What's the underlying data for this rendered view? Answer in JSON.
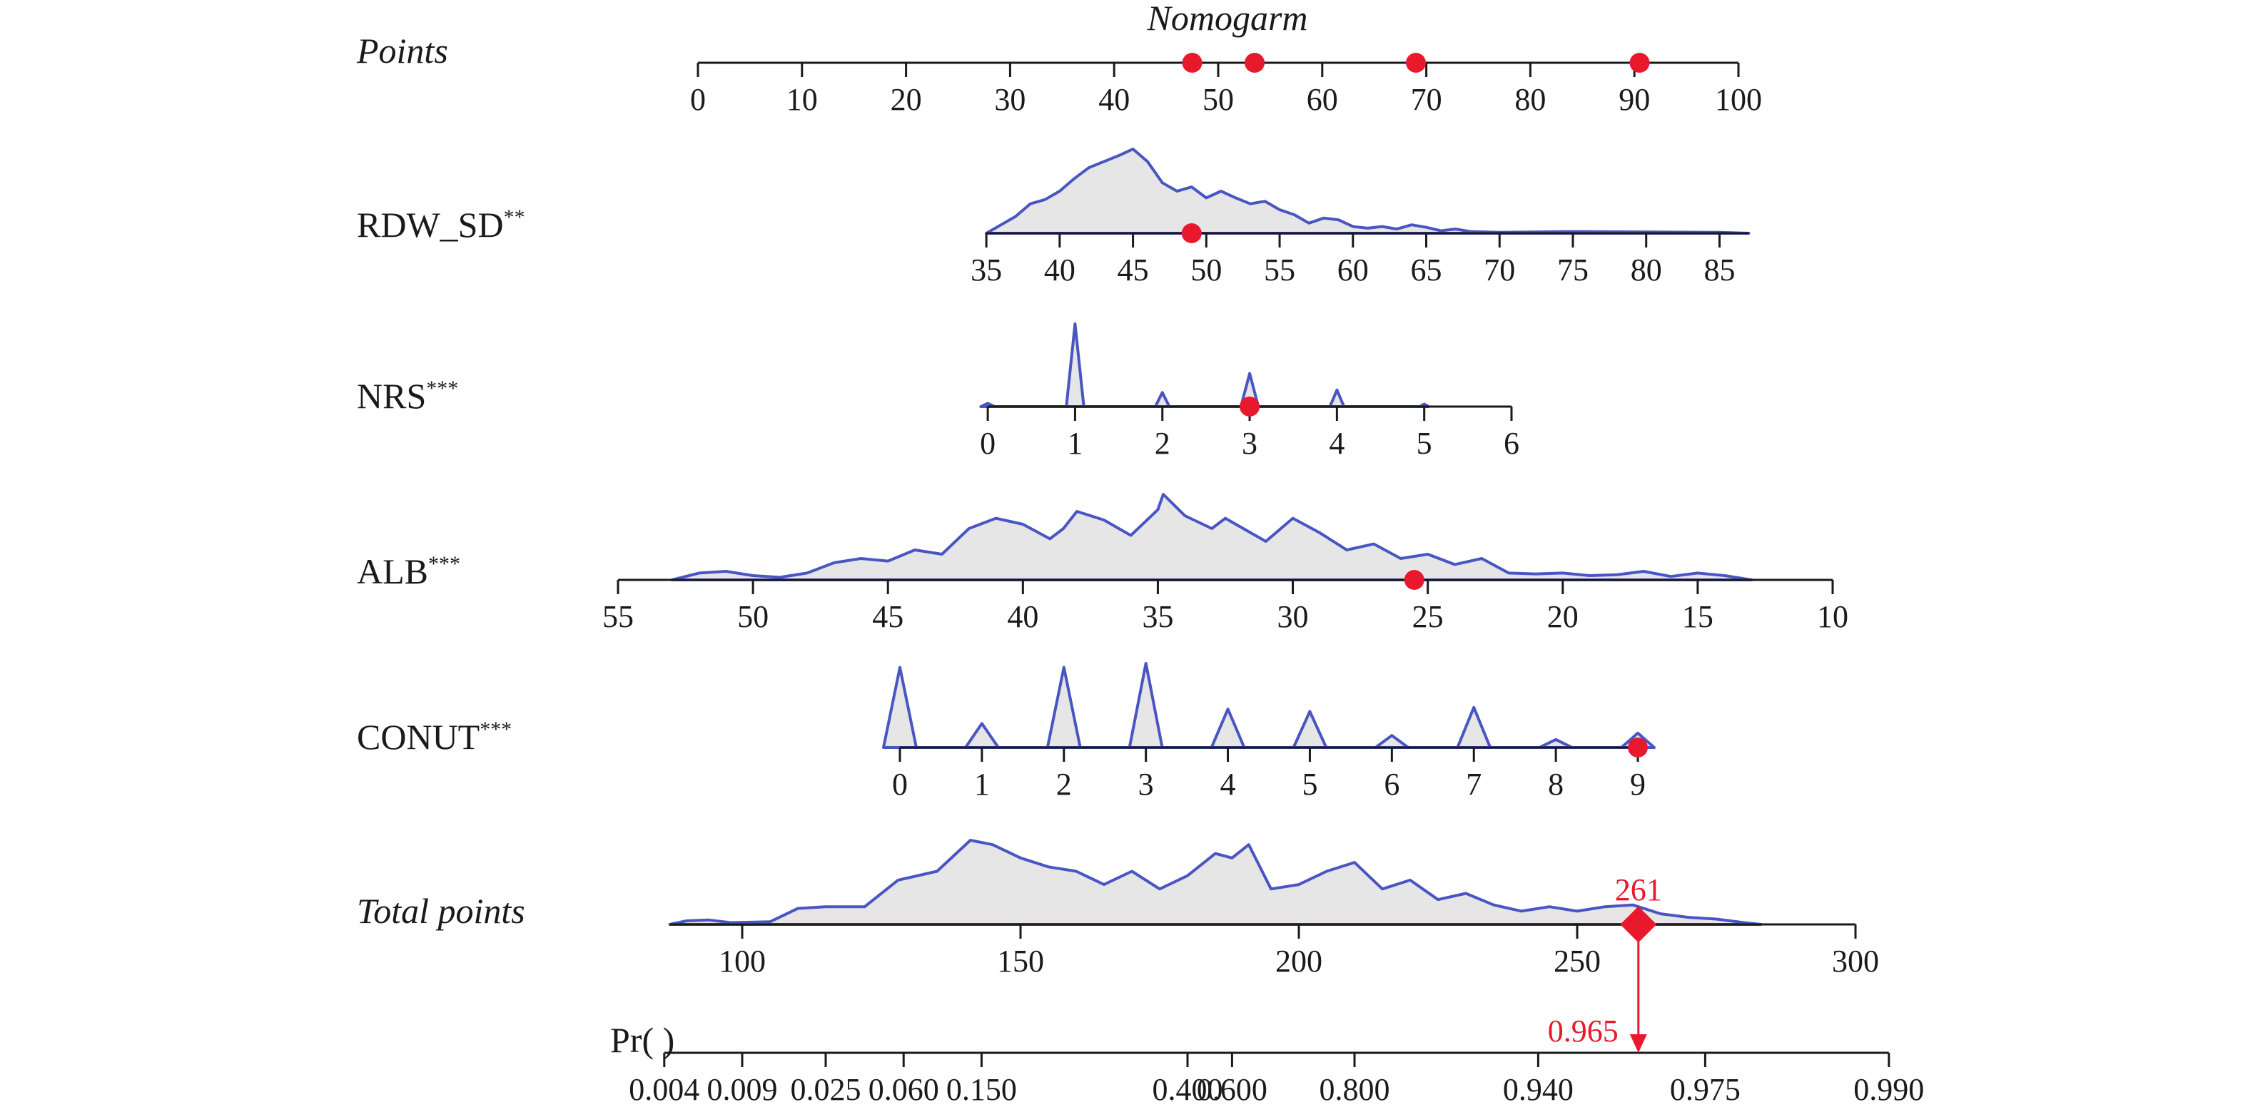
{
  "colors": {
    "marker": "#e8192c",
    "density_fill": "#e6e6e6",
    "density_stroke": "#4a55c4",
    "axis": "#1a1a1a"
  },
  "chart_data": {
    "type": "nomogram",
    "title": "Nomogarm",
    "points_axis": {
      "label": "Points",
      "range": [
        0,
        100
      ],
      "ticks": [
        "0",
        "10",
        "20",
        "30",
        "40",
        "50",
        "60",
        "70",
        "80",
        "90",
        "100"
      ],
      "markers": [
        47.5,
        53.5,
        69,
        90.5
      ]
    },
    "variables": [
      {
        "name": "RDW_SD",
        "sig": "**",
        "axis_range": [
          35,
          87
        ],
        "ticks": [
          "35",
          "40",
          "45",
          "50",
          "55",
          "60",
          "65",
          "70",
          "75",
          "80",
          "85"
        ],
        "marker_value": 49,
        "density": [
          [
            35,
            0
          ],
          [
            36,
            0.1
          ],
          [
            37,
            0.2
          ],
          [
            38,
            0.35
          ],
          [
            39,
            0.4
          ],
          [
            40,
            0.5
          ],
          [
            41,
            0.65
          ],
          [
            42,
            0.78
          ],
          [
            43,
            0.85
          ],
          [
            44,
            0.92
          ],
          [
            45,
            1.0
          ],
          [
            46,
            0.85
          ],
          [
            47,
            0.6
          ],
          [
            48,
            0.5
          ],
          [
            49,
            0.55
          ],
          [
            50,
            0.42
          ],
          [
            51,
            0.5
          ],
          [
            52,
            0.42
          ],
          [
            53,
            0.35
          ],
          [
            54,
            0.38
          ],
          [
            55,
            0.28
          ],
          [
            56,
            0.22
          ],
          [
            57,
            0.12
          ],
          [
            58,
            0.18
          ],
          [
            59,
            0.16
          ],
          [
            60,
            0.08
          ],
          [
            61,
            0.06
          ],
          [
            62,
            0.08
          ],
          [
            63,
            0.05
          ],
          [
            64,
            0.1
          ],
          [
            65,
            0.07
          ],
          [
            66,
            0.03
          ],
          [
            67,
            0.05
          ],
          [
            68,
            0.02
          ],
          [
            70,
            0.01
          ],
          [
            75,
            0.02
          ],
          [
            80,
            0.015
          ],
          [
            85,
            0.01
          ],
          [
            87,
            0
          ]
        ]
      },
      {
        "name": "NRS",
        "sig": "***",
        "axis_range": [
          0,
          6
        ],
        "ticks": [
          "0",
          "1",
          "2",
          "3",
          "4",
          "5",
          "6"
        ],
        "marker_value": 3,
        "density": [
          [
            -0.08,
            0
          ],
          [
            0,
            0.04
          ],
          [
            0.08,
            0
          ],
          [
            0.9,
            0
          ],
          [
            1,
            1.0
          ],
          [
            1.1,
            0
          ],
          [
            1.92,
            0
          ],
          [
            2,
            0.17
          ],
          [
            2.08,
            0
          ],
          [
            2.9,
            0
          ],
          [
            3,
            0.4
          ],
          [
            3.1,
            0
          ],
          [
            3.92,
            0
          ],
          [
            4,
            0.2
          ],
          [
            4.08,
            0
          ],
          [
            4.95,
            0
          ],
          [
            5,
            0.03
          ],
          [
            5.05,
            0
          ]
        ]
      },
      {
        "name": "ALB",
        "sig": "***",
        "axis_range": [
          55,
          10
        ],
        "ticks": [
          "55",
          "50",
          "45",
          "40",
          "35",
          "30",
          "25",
          "20",
          "15",
          "10"
        ],
        "marker_value": 25.5,
        "density": [
          [
            53,
            0
          ],
          [
            52,
            0.08
          ],
          [
            51,
            0.1
          ],
          [
            50,
            0.05
          ],
          [
            49,
            0.03
          ],
          [
            48,
            0.08
          ],
          [
            47,
            0.2
          ],
          [
            46,
            0.25
          ],
          [
            45,
            0.22
          ],
          [
            44,
            0.35
          ],
          [
            43,
            0.3
          ],
          [
            42,
            0.6
          ],
          [
            41,
            0.72
          ],
          [
            40,
            0.65
          ],
          [
            39,
            0.48
          ],
          [
            38.5,
            0.6
          ],
          [
            38,
            0.8
          ],
          [
            37,
            0.7
          ],
          [
            36,
            0.52
          ],
          [
            35,
            0.82
          ],
          [
            34.8,
            1.0
          ],
          [
            34,
            0.75
          ],
          [
            33,
            0.6
          ],
          [
            32.5,
            0.72
          ],
          [
            31,
            0.45
          ],
          [
            30,
            0.72
          ],
          [
            29,
            0.55
          ],
          [
            28,
            0.35
          ],
          [
            27,
            0.42
          ],
          [
            26,
            0.25
          ],
          [
            25,
            0.3
          ],
          [
            24,
            0.18
          ],
          [
            23,
            0.25
          ],
          [
            22,
            0.08
          ],
          [
            21,
            0.07
          ],
          [
            20,
            0.08
          ],
          [
            19,
            0.05
          ],
          [
            18,
            0.06
          ],
          [
            17,
            0.1
          ],
          [
            16,
            0.04
          ],
          [
            15,
            0.08
          ],
          [
            14,
            0.05
          ],
          [
            13,
            0
          ]
        ]
      },
      {
        "name": "CONUT",
        "sig": "***",
        "axis_range": [
          0,
          9
        ],
        "ticks": [
          "0",
          "1",
          "2",
          "3",
          "4",
          "5",
          "6",
          "7",
          "8",
          "9"
        ],
        "marker_value": 9,
        "density": [
          [
            -0.2,
            0
          ],
          [
            0,
            1.0
          ],
          [
            0.2,
            0
          ],
          [
            0.8,
            0
          ],
          [
            1,
            0.3
          ],
          [
            1.2,
            0
          ],
          [
            1.8,
            0
          ],
          [
            2,
            1.0
          ],
          [
            2.2,
            0
          ],
          [
            2.8,
            0
          ],
          [
            3,
            1.05
          ],
          [
            3.2,
            0
          ],
          [
            3.8,
            0
          ],
          [
            4,
            0.48
          ],
          [
            4.2,
            0
          ],
          [
            4.8,
            0
          ],
          [
            5,
            0.45
          ],
          [
            5.2,
            0
          ],
          [
            5.8,
            0
          ],
          [
            6,
            0.15
          ],
          [
            6.2,
            0
          ],
          [
            6.8,
            0
          ],
          [
            7,
            0.5
          ],
          [
            7.2,
            0
          ],
          [
            7.8,
            0
          ],
          [
            8,
            0.1
          ],
          [
            8.2,
            0
          ],
          [
            8.8,
            0
          ],
          [
            9,
            0.18
          ],
          [
            9.2,
            0
          ]
        ]
      }
    ],
    "total_points": {
      "label": "Total points",
      "axis_range": [
        87,
        300
      ],
      "ticks": [
        "100",
        "150",
        "200",
        "250",
        "300"
      ],
      "marker_value": 261,
      "marker_label": "261",
      "density": [
        [
          87,
          0
        ],
        [
          90,
          0.04
        ],
        [
          94,
          0.05
        ],
        [
          98,
          0.02
        ],
        [
          105,
          0.03
        ],
        [
          110,
          0.18
        ],
        [
          115,
          0.2
        ],
        [
          122,
          0.2
        ],
        [
          128,
          0.5
        ],
        [
          135,
          0.6
        ],
        [
          141,
          0.95
        ],
        [
          145,
          0.9
        ],
        [
          150,
          0.75
        ],
        [
          155,
          0.65
        ],
        [
          160,
          0.6
        ],
        [
          165,
          0.45
        ],
        [
          170,
          0.6
        ],
        [
          175,
          0.4
        ],
        [
          180,
          0.55
        ],
        [
          185,
          0.8
        ],
        [
          188,
          0.75
        ],
        [
          191,
          0.9
        ],
        [
          195,
          0.4
        ],
        [
          200,
          0.45
        ],
        [
          205,
          0.6
        ],
        [
          210,
          0.7
        ],
        [
          215,
          0.4
        ],
        [
          220,
          0.5
        ],
        [
          225,
          0.28
        ],
        [
          230,
          0.35
        ],
        [
          235,
          0.22
        ],
        [
          240,
          0.15
        ],
        [
          245,
          0.2
        ],
        [
          250,
          0.15
        ],
        [
          255,
          0.2
        ],
        [
          260,
          0.22
        ],
        [
          265,
          0.12
        ],
        [
          270,
          0.08
        ],
        [
          275,
          0.06
        ],
        [
          280,
          0.02
        ],
        [
          283,
          0
        ]
      ]
    },
    "probability": {
      "label": "Pr( )",
      "ticks": [
        "0.004",
        "0.009",
        "0.025",
        "0.060",
        "0.150",
        "0.400",
        "0.600",
        "0.800",
        "0.940",
        "0.975",
        "0.990"
      ],
      "tick_total_points": [
        86,
        100,
        115,
        129,
        143,
        180,
        188,
        210,
        243,
        273,
        306
      ],
      "result_value": 0.965,
      "result_label": "0.965"
    }
  }
}
